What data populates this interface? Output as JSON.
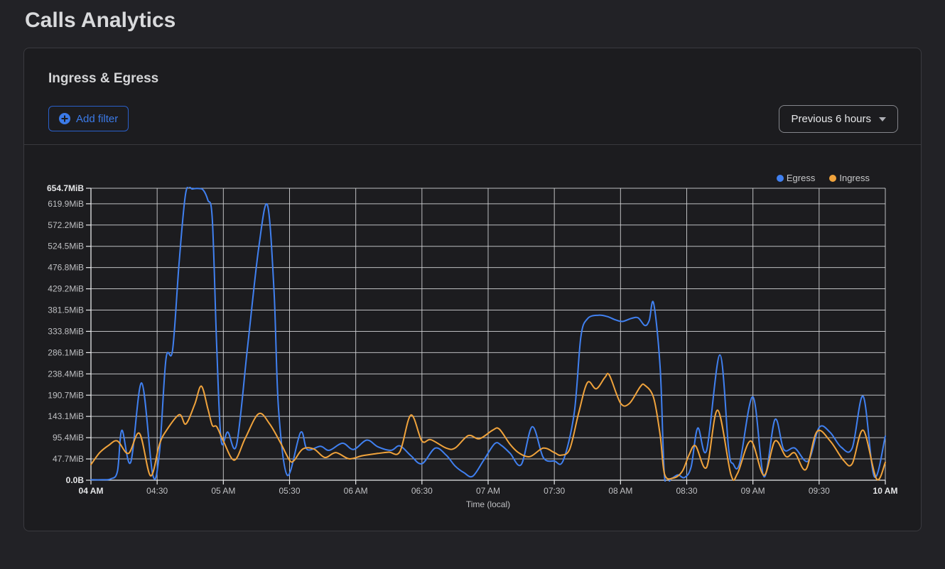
{
  "page": {
    "title": "Calls Analytics"
  },
  "panel": {
    "title": "Ingress & Egress",
    "add_filter_label": "Add filter",
    "time_range_label": "Previous 6 hours",
    "icons": {
      "add_filter": "plus-circle",
      "time_range": "chevron-down"
    }
  },
  "colors": {
    "page_bg": "#222226",
    "card_bg": "#1c1c1f",
    "border": "#3a3a3f",
    "egress": "#4080f0",
    "ingress": "#f0a33c",
    "grid": "#d4d5d7",
    "axis": "#e9eaec",
    "tick_text": "#bfc0c3",
    "tick_text_bold": "#e5e6e8"
  },
  "chart_data": {
    "type": "line",
    "xlabel": "Time (local)",
    "ylabel": "",
    "x_unit": "minutes after 04:00 local",
    "y_unit": "MiB",
    "xlim": [
      0,
      360
    ],
    "ylim": [
      0,
      654.7
    ],
    "grid": true,
    "legend_position": "top-right",
    "x_ticks": [
      {
        "t": 0,
        "label": "04 AM",
        "bold": true
      },
      {
        "t": 30,
        "label": "04:30"
      },
      {
        "t": 60,
        "label": "05 AM"
      },
      {
        "t": 90,
        "label": "05:30"
      },
      {
        "t": 120,
        "label": "06 AM"
      },
      {
        "t": 150,
        "label": "06:30"
      },
      {
        "t": 180,
        "label": "07 AM"
      },
      {
        "t": 210,
        "label": "07:30"
      },
      {
        "t": 240,
        "label": "08 AM"
      },
      {
        "t": 270,
        "label": "08:30"
      },
      {
        "t": 300,
        "label": "09 AM"
      },
      {
        "t": 330,
        "label": "09:30"
      },
      {
        "t": 360,
        "label": "10 AM",
        "bold": true
      }
    ],
    "y_ticks": [
      {
        "v": 0,
        "label": "0.0B",
        "bold": true
      },
      {
        "v": 47.7,
        "label": "47.7MiB"
      },
      {
        "v": 95.4,
        "label": "95.4MiB"
      },
      {
        "v": 143.1,
        "label": "143.1MiB"
      },
      {
        "v": 190.7,
        "label": "190.7MiB"
      },
      {
        "v": 238.4,
        "label": "238.4MiB"
      },
      {
        "v": 286.1,
        "label": "286.1MiB"
      },
      {
        "v": 333.8,
        "label": "333.8MiB"
      },
      {
        "v": 381.5,
        "label": "381.5MiB"
      },
      {
        "v": 429.2,
        "label": "429.2MiB"
      },
      {
        "v": 476.8,
        "label": "476.8MiB"
      },
      {
        "v": 524.5,
        "label": "524.5MiB"
      },
      {
        "v": 572.2,
        "label": "572.2MiB"
      },
      {
        "v": 619.9,
        "label": "619.9MiB"
      },
      {
        "v": 654.7,
        "label": "654.7MiB",
        "bold": true
      }
    ],
    "legend": [
      {
        "name": "Egress",
        "color": "#4080f0"
      },
      {
        "name": "Ingress",
        "color": "#f0a33c"
      }
    ],
    "series": [
      {
        "name": "Egress",
        "color": "#4080f0",
        "points": [
          [
            0,
            1
          ],
          [
            5,
            1
          ],
          [
            9,
            3
          ],
          [
            12,
            20
          ],
          [
            14,
            112
          ],
          [
            18,
            40
          ],
          [
            23,
            218
          ],
          [
            28,
            12
          ],
          [
            31,
            60
          ],
          [
            34,
            272
          ],
          [
            37,
            292
          ],
          [
            40,
            490
          ],
          [
            43,
            645
          ],
          [
            46,
            653
          ],
          [
            49,
            654
          ],
          [
            51,
            650
          ],
          [
            53,
            628
          ],
          [
            55,
            585
          ],
          [
            57,
            300
          ],
          [
            59,
            90
          ],
          [
            62,
            108
          ],
          [
            66,
            80
          ],
          [
            71,
            300
          ],
          [
            76,
            520
          ],
          [
            80,
            617
          ],
          [
            83,
            420
          ],
          [
            85,
            160
          ],
          [
            89,
            11
          ],
          [
            95,
            107
          ],
          [
            98,
            69
          ],
          [
            104,
            76
          ],
          [
            108,
            67
          ],
          [
            114,
            83
          ],
          [
            119,
            69
          ],
          [
            125,
            90
          ],
          [
            130,
            75
          ],
          [
            136,
            67
          ],
          [
            140,
            77
          ],
          [
            145,
            55
          ],
          [
            150,
            37
          ],
          [
            156,
            72
          ],
          [
            161,
            56
          ],
          [
            165,
            32
          ],
          [
            169,
            17
          ],
          [
            173,
            9
          ],
          [
            178,
            45
          ],
          [
            183,
            82
          ],
          [
            186,
            78
          ],
          [
            190,
            60
          ],
          [
            195,
            35
          ],
          [
            200,
            120
          ],
          [
            205,
            51
          ],
          [
            210,
            43
          ],
          [
            214,
            44
          ],
          [
            219,
            150
          ],
          [
            222,
            320
          ],
          [
            225,
            362
          ],
          [
            230,
            370
          ],
          [
            234,
            367
          ],
          [
            238,
            359
          ],
          [
            241,
            356
          ],
          [
            245,
            363
          ],
          [
            248,
            364
          ],
          [
            251,
            347
          ],
          [
            253,
            358
          ],
          [
            255,
            397
          ],
          [
            258,
            250
          ],
          [
            260,
            6
          ],
          [
            263,
            4
          ],
          [
            266,
            12
          ],
          [
            269,
            6
          ],
          [
            272,
            30
          ],
          [
            275,
            117
          ],
          [
            279,
            67
          ],
          [
            285,
            281
          ],
          [
            289,
            70
          ],
          [
            291,
            37
          ],
          [
            294,
            38
          ],
          [
            300,
            187
          ],
          [
            305,
            8
          ],
          [
            310,
            136
          ],
          [
            314,
            69
          ],
          [
            319,
            72
          ],
          [
            325,
            43
          ],
          [
            330,
            118
          ],
          [
            335,
            107
          ],
          [
            340,
            74
          ],
          [
            345,
            72
          ],
          [
            350,
            188
          ],
          [
            355,
            8
          ],
          [
            360,
            99
          ]
        ]
      },
      {
        "name": "Ingress",
        "color": "#f0a33c",
        "points": [
          [
            0,
            35
          ],
          [
            4,
            62
          ],
          [
            8,
            78
          ],
          [
            12,
            88
          ],
          [
            17,
            60
          ],
          [
            22,
            105
          ],
          [
            27,
            10
          ],
          [
            31,
            80
          ],
          [
            34,
            110
          ],
          [
            40,
            147
          ],
          [
            43,
            126
          ],
          [
            47,
            170
          ],
          [
            50,
            211
          ],
          [
            53,
            160
          ],
          [
            55,
            123
          ],
          [
            57,
            120
          ],
          [
            60,
            88
          ],
          [
            65,
            45
          ],
          [
            70,
            95
          ],
          [
            76,
            149
          ],
          [
            81,
            126
          ],
          [
            86,
            83
          ],
          [
            90,
            45
          ],
          [
            92,
            44
          ],
          [
            96,
            70
          ],
          [
            101,
            70
          ],
          [
            106,
            51
          ],
          [
            111,
            62
          ],
          [
            117,
            48
          ],
          [
            123,
            55
          ],
          [
            130,
            60
          ],
          [
            135,
            63
          ],
          [
            140,
            64
          ],
          [
            145,
            146
          ],
          [
            150,
            88
          ],
          [
            154,
            91
          ],
          [
            161,
            72
          ],
          [
            165,
            72
          ],
          [
            171,
            100
          ],
          [
            176,
            93
          ],
          [
            182,
            112
          ],
          [
            185,
            115
          ],
          [
            190,
            80
          ],
          [
            194,
            61
          ],
          [
            199,
            53
          ],
          [
            205,
            72
          ],
          [
            210,
            62
          ],
          [
            213,
            56
          ],
          [
            217,
            70
          ],
          [
            221,
            150
          ],
          [
            225,
            219
          ],
          [
            229,
            205
          ],
          [
            233,
            231
          ],
          [
            235,
            235
          ],
          [
            240,
            173
          ],
          [
            244,
            172
          ],
          [
            249,
            210
          ],
          [
            251,
            213
          ],
          [
            255,
            185
          ],
          [
            258,
            100
          ],
          [
            260,
            13
          ],
          [
            264,
            5
          ],
          [
            268,
            20
          ],
          [
            271,
            56
          ],
          [
            274,
            77
          ],
          [
            279,
            29
          ],
          [
            284,
            157
          ],
          [
            290,
            13
          ],
          [
            293,
            15
          ],
          [
            299,
            88
          ],
          [
            305,
            11
          ],
          [
            310,
            88
          ],
          [
            315,
            53
          ],
          [
            319,
            61
          ],
          [
            324,
            24
          ],
          [
            329,
            109
          ],
          [
            335,
            88
          ],
          [
            341,
            45
          ],
          [
            345,
            37
          ],
          [
            350,
            112
          ],
          [
            356,
            3
          ],
          [
            360,
            40
          ]
        ]
      }
    ]
  }
}
